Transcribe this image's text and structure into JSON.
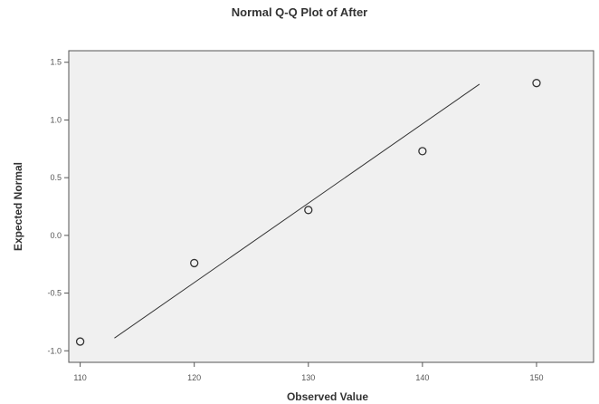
{
  "chart_data": {
    "type": "scatter",
    "title": "Normal Q-Q Plot of After",
    "xlabel": "Observed Value",
    "ylabel": "Expected Normal",
    "xlim": [
      109,
      155
    ],
    "ylim": [
      -1.1,
      1.6
    ],
    "x_ticks": [
      110,
      120,
      130,
      140,
      150
    ],
    "x_tick_labels": [
      "110",
      "120",
      "130",
      "140",
      "150"
    ],
    "y_ticks": [
      -1.0,
      -0.5,
      0.0,
      0.5,
      1.0,
      1.5
    ],
    "y_tick_labels": [
      "-1.0",
      "-0.5",
      "0.0",
      "0.5",
      "1.0",
      "1.5"
    ],
    "grid": false,
    "series": [
      {
        "marker": "circle",
        "points": [
          {
            "x": 110,
            "y": -0.92
          },
          {
            "x": 120,
            "y": -0.24
          },
          {
            "x": 130,
            "y": 0.22
          },
          {
            "x": 140,
            "y": 0.73
          },
          {
            "x": 150,
            "y": 1.32
          }
        ]
      }
    ],
    "reference_line": {
      "x": [
        113,
        145
      ],
      "y": [
        -0.89,
        1.31
      ]
    },
    "colors": {
      "plot_background": "#f0f0f0",
      "marks": "#333333",
      "axis": "#555555"
    }
  }
}
